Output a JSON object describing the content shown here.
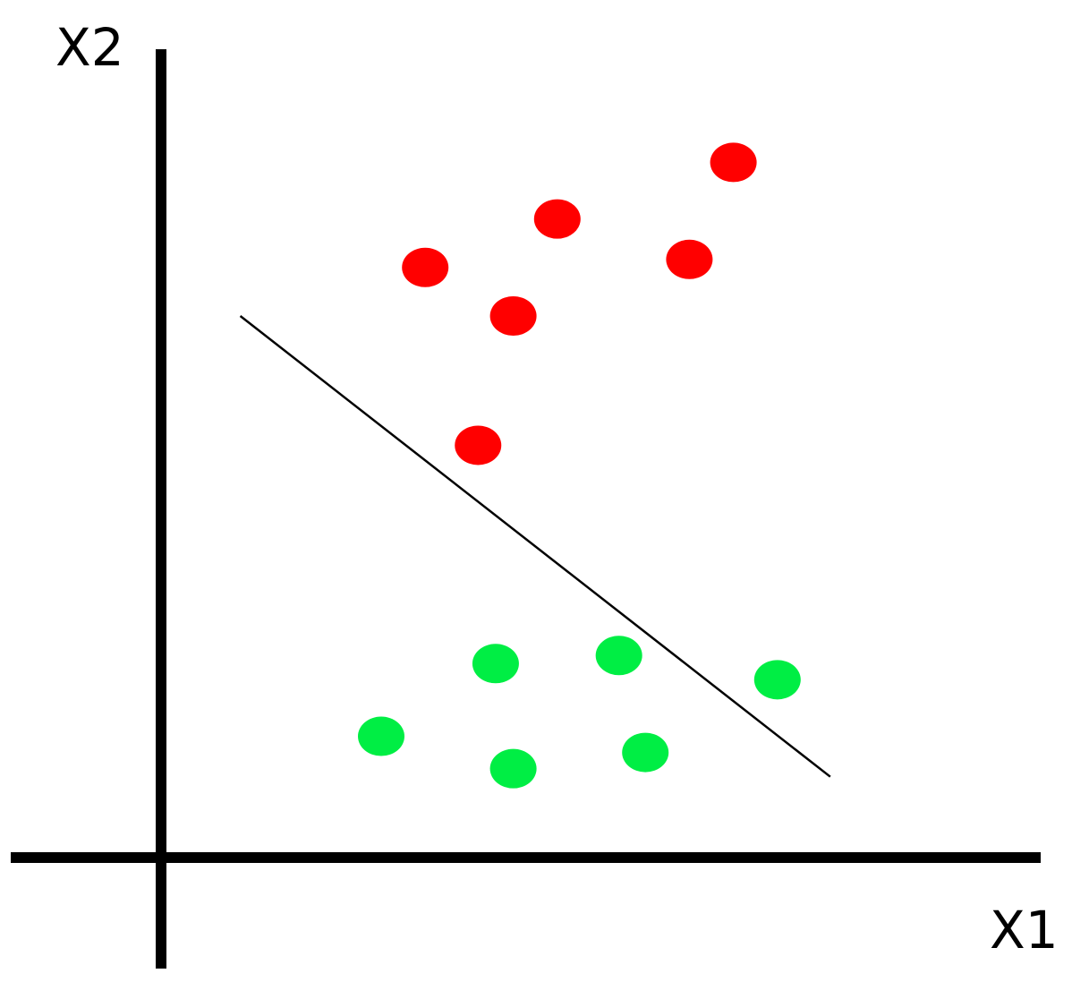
{
  "diagram": {
    "x_axis_label": "X1",
    "y_axis_label": "X2",
    "colors": {
      "axis": "#000000",
      "decision_boundary": "#000000",
      "class_red": "#ff0000",
      "class_green": "#00ee44"
    },
    "points_red": [
      [
        0.3,
        0.73
      ],
      [
        0.45,
        0.79
      ],
      [
        0.4,
        0.67
      ],
      [
        0.6,
        0.74
      ],
      [
        0.65,
        0.86
      ],
      [
        0.36,
        0.51
      ]
    ],
    "points_green": [
      [
        0.38,
        0.24
      ],
      [
        0.52,
        0.25
      ],
      [
        0.7,
        0.22
      ],
      [
        0.25,
        0.15
      ],
      [
        0.4,
        0.11
      ],
      [
        0.55,
        0.13
      ]
    ],
    "decision_boundary": [
      [
        0.09,
        0.67
      ],
      [
        0.76,
        0.1
      ]
    ]
  }
}
